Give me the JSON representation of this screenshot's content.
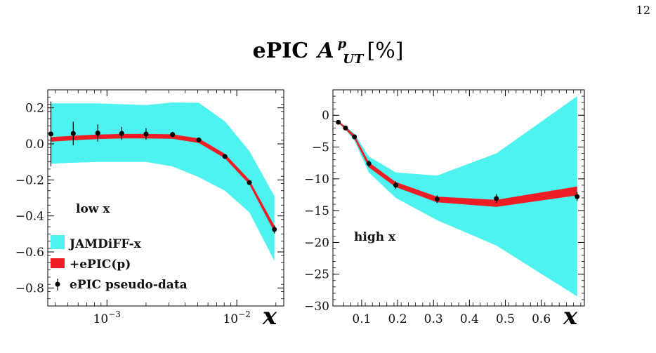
{
  "page_number": "12",
  "figure": {
    "title": {
      "main": "ePIC",
      "symbol": "A",
      "sup": "p",
      "sub": "UT",
      "unit": "[%]"
    },
    "colors": {
      "jam": "#4ef3f0",
      "epic": "#ee1c25",
      "data": "#000000"
    }
  },
  "legend": [
    {
      "key": "jam",
      "label": "JAMDiFF-x"
    },
    {
      "key": "epic",
      "label": "+ePIC(p)"
    },
    {
      "key": "data",
      "label": "ePIC pseudo-data"
    }
  ],
  "chart_data": [
    {
      "type": "area",
      "id": "low",
      "annotation": "low x",
      "xlabel": "x",
      "xscale": "log",
      "xlim": [
        0.00035,
        0.023
      ],
      "ylim": [
        -0.9,
        0.3
      ],
      "yticks": [
        0.2,
        0.0,
        -0.2,
        -0.4,
        -0.6,
        -0.8
      ],
      "ytick_labels": [
        "0.2",
        "0.0",
        "−0.2",
        "−0.4",
        "−0.6",
        "−0.8"
      ],
      "xticks": [
        0.001,
        0.01
      ],
      "xtick_labels": [
        {
          "base": "10",
          "exp": "−3"
        },
        {
          "base": "10",
          "exp": "−2"
        }
      ],
      "x": [
        0.00037,
        0.00055,
        0.00085,
        0.0013,
        0.002,
        0.0032,
        0.0051,
        0.0081,
        0.0125,
        0.0195
      ],
      "jam_band": {
        "lower": [
          -0.11,
          -0.105,
          -0.1,
          -0.1,
          -0.1,
          -0.125,
          -0.185,
          -0.26,
          -0.38,
          -0.65
        ],
        "upper": [
          0.225,
          0.225,
          0.225,
          0.22,
          0.215,
          0.23,
          0.228,
          0.125,
          -0.04,
          -0.29
        ]
      },
      "epic_band": {
        "lower": [
          0.012,
          0.02,
          0.027,
          0.03,
          0.03,
          0.028,
          0.005,
          -0.08,
          -0.225,
          -0.49
        ],
        "upper": [
          0.037,
          0.045,
          0.052,
          0.055,
          0.055,
          0.053,
          0.03,
          -0.055,
          -0.2,
          -0.455
        ]
      },
      "pseudo_data": {
        "x": [
          0.00037,
          0.00055,
          0.00085,
          0.0013,
          0.002,
          0.0032,
          0.0051,
          0.0081,
          0.0125,
          0.0195
        ],
        "y": [
          0.055,
          0.058,
          0.06,
          0.058,
          0.055,
          0.052,
          0.022,
          -0.07,
          -0.215,
          -0.475
        ],
        "err": [
          0.18,
          0.065,
          0.048,
          0.036,
          0.032,
          0.015,
          0.008,
          0.01,
          0.012,
          0.022
        ]
      }
    },
    {
      "type": "area",
      "id": "high",
      "annotation": "high x",
      "xlabel": "x",
      "xscale": "linear",
      "xlim": [
        0.02,
        0.72
      ],
      "ylim": [
        -30,
        4
      ],
      "yticks": [
        0,
        -5,
        -10,
        -15,
        -20,
        -25,
        -30
      ],
      "ytick_labels": [
        "0",
        "−5",
        "−10",
        "−15",
        "−20",
        "−25",
        "−30"
      ],
      "xticks": [
        0.1,
        0.2,
        0.3,
        0.4,
        0.5,
        0.6
      ],
      "xtick_labels": [
        "0.1",
        "0.2",
        "0.3",
        "0.4",
        "0.5",
        "0.6"
      ],
      "x": [
        0.035,
        0.055,
        0.08,
        0.12,
        0.195,
        0.31,
        0.475,
        0.7
      ],
      "jam_band": {
        "lower": [
          -1.2,
          -2.3,
          -4.0,
          -9.0,
          -13.0,
          -16.5,
          -20.5,
          -28.5
        ],
        "upper": [
          -0.9,
          -1.7,
          -2.9,
          -6.5,
          -9.0,
          -9.5,
          -6.0,
          3.0
        ]
      },
      "epic_band": {
        "lower": [
          -1.2,
          -2.2,
          -3.7,
          -8.2,
          -11.3,
          -13.7,
          -14.4,
          -12.6
        ],
        "upper": [
          -0.9,
          -1.8,
          -3.1,
          -7.4,
          -10.5,
          -12.8,
          -13.3,
          -11.2
        ]
      },
      "pseudo_data": {
        "x": [
          0.035,
          0.055,
          0.08,
          0.12,
          0.195,
          0.31,
          0.475,
          0.7
        ],
        "y": [
          -1.1,
          -2.0,
          -3.4,
          -7.6,
          -11.0,
          -13.2,
          -13.1,
          -12.8
        ],
        "err": [
          0.1,
          0.2,
          0.3,
          0.5,
          0.6,
          0.6,
          0.7,
          0.7
        ]
      }
    }
  ]
}
